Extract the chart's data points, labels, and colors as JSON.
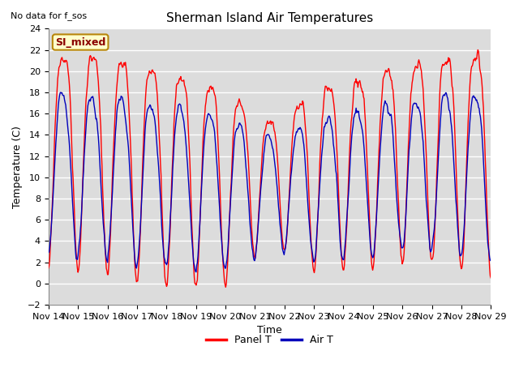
{
  "title": "Sherman Island Air Temperatures",
  "xlabel": "Time",
  "ylabel": "Temperature (C)",
  "top_left_text": "No data for f_sos",
  "legend_label_text": "SI_mixed",
  "ylim": [
    -2,
    24
  ],
  "yticks": [
    -2,
    0,
    2,
    4,
    6,
    8,
    10,
    12,
    14,
    16,
    18,
    20,
    22,
    24
  ],
  "xtick_labels": [
    "Nov 14",
    "Nov 15",
    "Nov 16",
    "Nov 17",
    "Nov 18",
    "Nov 19",
    "Nov 20",
    "Nov 21",
    "Nov 22",
    "Nov 23",
    "Nov 24",
    "Nov 25",
    "Nov 26",
    "Nov 27",
    "Nov 28",
    "Nov 29"
  ],
  "panel_color": "#FF0000",
  "air_color": "#0000BB",
  "background_color": "#DCDCDC",
  "legend_box_facecolor": "#FFFFCC",
  "legend_box_edgecolor": "#B8860B",
  "title_fontsize": 11,
  "axis_label_fontsize": 9,
  "tick_fontsize": 8
}
